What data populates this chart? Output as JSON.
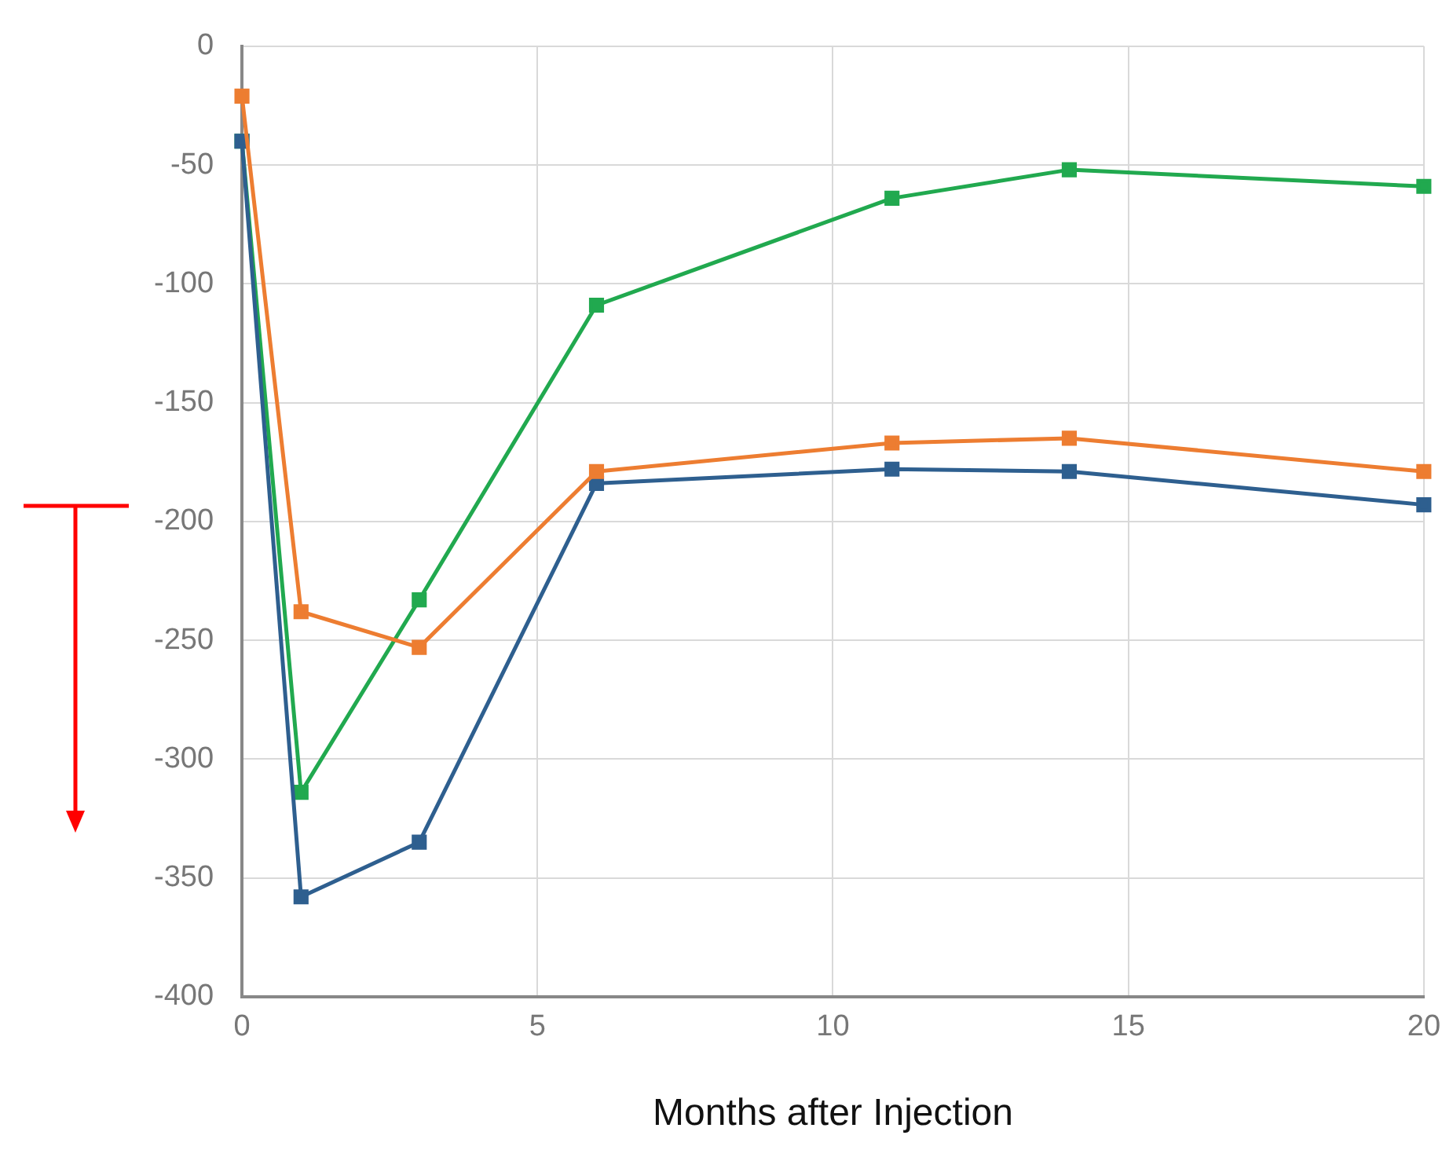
{
  "chart_data": {
    "type": "line",
    "xlabel": "Months after Injection",
    "x": [
      0,
      1,
      3,
      6,
      11,
      14,
      20
    ],
    "series": [
      {
        "color": "#ed7d31",
        "values": [
          -21,
          -238,
          -253,
          -179,
          -167,
          -165,
          -179
        ]
      },
      {
        "color": "#2e5f8f",
        "values": [
          -40,
          -358,
          -335,
          -184,
          -178,
          -179,
          -193
        ]
      },
      {
        "color": "#21a94f",
        "values": [
          -40,
          -314,
          -233,
          -109,
          -64,
          -52,
          -59
        ]
      }
    ],
    "xlim": [
      0,
      20
    ],
    "xticks": [
      0,
      5,
      10,
      15,
      20
    ],
    "ylim": [
      -400,
      0
    ],
    "yticks": [
      -400,
      -350,
      -300,
      -250,
      -200,
      -150,
      -100,
      -50,
      0
    ],
    "grid": true,
    "legend": false,
    "marker": "square",
    "line_style": "solid"
  }
}
